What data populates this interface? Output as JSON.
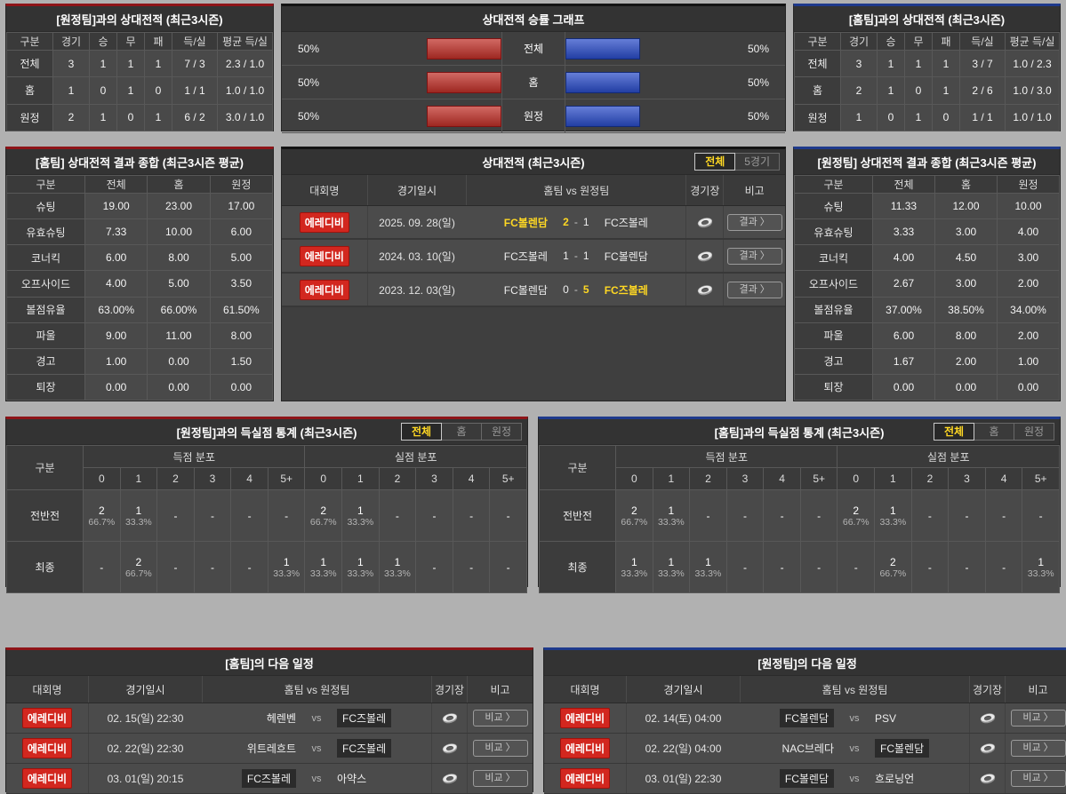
{
  "colors": {
    "accent_red": "#8e1418",
    "accent_blue": "#1e3a8c",
    "accent_dark": "#141414",
    "bar_red": "#c03028",
    "bar_blue": "#2a4cc8",
    "badge_red": "#d2271f",
    "highlight_yellow": "#ffd823"
  },
  "icons": {
    "stadium": "silver-ring"
  },
  "h2h_away": {
    "title": "[원정팀]과의 상대전적 (최근3시즌)",
    "headers": [
      "구분",
      "경기",
      "승",
      "무",
      "패",
      "득/실",
      "평균 득/실"
    ],
    "rows": [
      {
        "label": "전체",
        "cells": [
          "3",
          "1",
          "1",
          "1",
          "7 / 3",
          "2.3 / 1.0"
        ]
      },
      {
        "label": "홈",
        "cells": [
          "1",
          "0",
          "1",
          "0",
          "1 / 1",
          "1.0 / 1.0"
        ]
      },
      {
        "label": "원정",
        "cells": [
          "2",
          "1",
          "0",
          "1",
          "6 / 2",
          "3.0 / 1.0"
        ]
      }
    ]
  },
  "win_graph": {
    "title": "상대전적 승률 그래프",
    "rows": [
      {
        "label": "전체",
        "left_value": "50%",
        "right_value": "50%"
      },
      {
        "label": "홈",
        "left_value": "50%",
        "right_value": "50%"
      },
      {
        "label": "원정",
        "left_value": "50%",
        "right_value": "50%"
      }
    ]
  },
  "h2h_home": {
    "title": "[홈팀]과의 상대전적 (최근3시즌)",
    "headers": [
      "구분",
      "경기",
      "승",
      "무",
      "패",
      "득/실",
      "평균 득/실"
    ],
    "rows": [
      {
        "label": "전체",
        "cells": [
          "3",
          "1",
          "1",
          "1",
          "3 / 7",
          "1.0 / 2.3"
        ]
      },
      {
        "label": "홈",
        "cells": [
          "2",
          "1",
          "0",
          "1",
          "2 / 6",
          "1.0 / 3.0"
        ]
      },
      {
        "label": "원정",
        "cells": [
          "1",
          "0",
          "1",
          "0",
          "1 / 1",
          "1.0 / 1.0"
        ]
      }
    ]
  },
  "sum_home": {
    "title": "[홈팀] 상대전적 결과 종합 (최근3시즌 평균)",
    "headers": [
      "구분",
      "전체",
      "홈",
      "원정"
    ],
    "rows": [
      {
        "label": "슈팅",
        "cells": [
          "19.00",
          "23.00",
          "17.00"
        ]
      },
      {
        "label": "유효슈팅",
        "cells": [
          "7.33",
          "10.00",
          "6.00"
        ]
      },
      {
        "label": "코너킥",
        "cells": [
          "6.00",
          "8.00",
          "5.00"
        ]
      },
      {
        "label": "오프사이드",
        "cells": [
          "4.00",
          "5.00",
          "3.50"
        ]
      },
      {
        "label": "볼점유율",
        "cells": [
          "63.00%",
          "66.00%",
          "61.50%"
        ]
      },
      {
        "label": "파울",
        "cells": [
          "9.00",
          "11.00",
          "8.00"
        ]
      },
      {
        "label": "경고",
        "cells": [
          "1.00",
          "0.00",
          "1.50"
        ]
      },
      {
        "label": "퇴장",
        "cells": [
          "0.00",
          "0.00",
          "0.00"
        ]
      }
    ]
  },
  "sum_away": {
    "title": "[원정팀] 상대전적 결과 종합 (최근3시즌 평균)",
    "headers": [
      "구분",
      "전체",
      "홈",
      "원정"
    ],
    "rows": [
      {
        "label": "슈팅",
        "cells": [
          "11.33",
          "12.00",
          "10.00"
        ]
      },
      {
        "label": "유효슈팅",
        "cells": [
          "3.33",
          "3.00",
          "4.00"
        ]
      },
      {
        "label": "코너킥",
        "cells": [
          "4.00",
          "4.50",
          "3.00"
        ]
      },
      {
        "label": "오프사이드",
        "cells": [
          "2.67",
          "3.00",
          "2.00"
        ]
      },
      {
        "label": "볼점유율",
        "cells": [
          "37.00%",
          "38.50%",
          "34.00%"
        ]
      },
      {
        "label": "파울",
        "cells": [
          "6.00",
          "8.00",
          "2.00"
        ]
      },
      {
        "label": "경고",
        "cells": [
          "1.67",
          "2.00",
          "1.00"
        ]
      },
      {
        "label": "퇴장",
        "cells": [
          "0.00",
          "0.00",
          "0.00"
        ]
      }
    ]
  },
  "matches": {
    "title": "상대전적 (최근3시즌)",
    "tabs": [
      {
        "label": "전체",
        "active": true
      },
      {
        "label": "5경기",
        "active": false
      }
    ],
    "headers": {
      "league": "대회명",
      "date": "경기일시",
      "teams": "홈팀  vs  원정팀",
      "stadium": "경기장",
      "note": "비고"
    },
    "dash": "-",
    "rows": [
      {
        "league": "에레디비",
        "date": "2025. 09. 28(일)",
        "home": "FC볼렌담",
        "home_win": true,
        "score_home": "2",
        "score_away": "1",
        "away": "FC즈볼레",
        "away_win": false,
        "btn": "결과 〉"
      },
      {
        "league": "에레디비",
        "date": "2024. 03. 10(일)",
        "home": "FC즈볼레",
        "home_win": false,
        "score_home": "1",
        "score_away": "1",
        "away": "FC볼렌담",
        "away_win": false,
        "btn": "결과 〉"
      },
      {
        "league": "에레디비",
        "date": "2023. 12. 03(일)",
        "home": "FC볼렌담",
        "home_win": false,
        "score_home": "0",
        "score_away": "5",
        "away": "FC즈볼레",
        "away_win": true,
        "btn": "결과 〉"
      }
    ]
  },
  "gs_away": {
    "title": "[원정팀]과의 득실점 통계 (최근3시즌)",
    "tabs": [
      {
        "label": "전체",
        "active": true
      },
      {
        "label": "홈",
        "active": false
      },
      {
        "label": "원정",
        "active": false
      }
    ],
    "headers": {
      "cat": "구분",
      "scored": "득점 분포",
      "conceded": "실점 분포"
    },
    "cols": [
      "0",
      "1",
      "2",
      "3",
      "4",
      "5+"
    ],
    "rows": [
      {
        "label": "전반전",
        "cells": [
          {
            "c": "2",
            "p": "66.7%"
          },
          {
            "c": "1",
            "p": "33.3%"
          },
          {
            "c": "-",
            "p": ""
          },
          {
            "c": "-",
            "p": ""
          },
          {
            "c": "-",
            "p": ""
          },
          {
            "c": "-",
            "p": ""
          },
          {
            "c": "2",
            "p": "66.7%"
          },
          {
            "c": "1",
            "p": "33.3%"
          },
          {
            "c": "-",
            "p": ""
          },
          {
            "c": "-",
            "p": ""
          },
          {
            "c": "-",
            "p": ""
          },
          {
            "c": "-",
            "p": ""
          }
        ]
      },
      {
        "label": "최종",
        "cells": [
          {
            "c": "-",
            "p": ""
          },
          {
            "c": "2",
            "p": "66.7%"
          },
          {
            "c": "-",
            "p": ""
          },
          {
            "c": "-",
            "p": ""
          },
          {
            "c": "-",
            "p": ""
          },
          {
            "c": "1",
            "p": "33.3%"
          },
          {
            "c": "1",
            "p": "33.3%"
          },
          {
            "c": "1",
            "p": "33.3%"
          },
          {
            "c": "1",
            "p": "33.3%"
          },
          {
            "c": "-",
            "p": ""
          },
          {
            "c": "-",
            "p": ""
          },
          {
            "c": "-",
            "p": ""
          }
        ]
      }
    ]
  },
  "gs_home": {
    "title": "[홈팀]과의 득실점 통계 (최근3시즌)",
    "tabs": [
      {
        "label": "전체",
        "active": true
      },
      {
        "label": "홈",
        "active": false
      },
      {
        "label": "원정",
        "active": false
      }
    ],
    "headers": {
      "cat": "구분",
      "scored": "득점 분포",
      "conceded": "실점 분포"
    },
    "cols": [
      "0",
      "1",
      "2",
      "3",
      "4",
      "5+"
    ],
    "rows": [
      {
        "label": "전반전",
        "cells": [
          {
            "c": "2",
            "p": "66.7%"
          },
          {
            "c": "1",
            "p": "33.3%"
          },
          {
            "c": "-",
            "p": ""
          },
          {
            "c": "-",
            "p": ""
          },
          {
            "c": "-",
            "p": ""
          },
          {
            "c": "-",
            "p": ""
          },
          {
            "c": "2",
            "p": "66.7%"
          },
          {
            "c": "1",
            "p": "33.3%"
          },
          {
            "c": "-",
            "p": ""
          },
          {
            "c": "-",
            "p": ""
          },
          {
            "c": "-",
            "p": ""
          },
          {
            "c": "-",
            "p": ""
          }
        ]
      },
      {
        "label": "최종",
        "cells": [
          {
            "c": "1",
            "p": "33.3%"
          },
          {
            "c": "1",
            "p": "33.3%"
          },
          {
            "c": "1",
            "p": "33.3%"
          },
          {
            "c": "-",
            "p": ""
          },
          {
            "c": "-",
            "p": ""
          },
          {
            "c": "-",
            "p": ""
          },
          {
            "c": "-",
            "p": ""
          },
          {
            "c": "2",
            "p": "66.7%"
          },
          {
            "c": "-",
            "p": ""
          },
          {
            "c": "-",
            "p": ""
          },
          {
            "c": "-",
            "p": ""
          },
          {
            "c": "1",
            "p": "33.3%"
          }
        ]
      }
    ]
  },
  "sch_home": {
    "title": "[홈팀]의 다음 일정",
    "headers": {
      "league": "대회명",
      "date": "경기일시",
      "teams": "홈팀  vs  원정팀",
      "stadium": "경기장",
      "note": "비고"
    },
    "vs_label": "vs",
    "rows": [
      {
        "league": "에레디비",
        "date": "02. 15(일) 22:30",
        "home": "헤렌벤",
        "home_focus": false,
        "away": "FC즈볼레",
        "away_focus": true,
        "btn": "비교 〉"
      },
      {
        "league": "에레디비",
        "date": "02. 22(일) 22:30",
        "home": "위트레흐트",
        "home_focus": false,
        "away": "FC즈볼레",
        "away_focus": true,
        "btn": "비교 〉"
      },
      {
        "league": "에레디비",
        "date": "03. 01(일) 20:15",
        "home": "FC즈볼레",
        "home_focus": true,
        "away": "아약스",
        "away_focus": false,
        "btn": "비교 〉"
      }
    ]
  },
  "sch_away": {
    "title": "[원정팀]의 다음 일정",
    "headers": {
      "league": "대회명",
      "date": "경기일시",
      "teams": "홈팀  vs  원정팀",
      "stadium": "경기장",
      "note": "비고"
    },
    "vs_label": "vs",
    "rows": [
      {
        "league": "에레디비",
        "date": "02. 14(토) 04:00",
        "home": "FC볼렌담",
        "home_focus": true,
        "away": "PSV",
        "away_focus": false,
        "btn": "비교 〉"
      },
      {
        "league": "에레디비",
        "date": "02. 22(일) 04:00",
        "home": "NAC브레다",
        "home_focus": false,
        "away": "FC볼렌담",
        "away_focus": true,
        "btn": "비교 〉"
      },
      {
        "league": "에레디비",
        "date": "03. 01(일) 22:30",
        "home": "FC볼렌담",
        "home_focus": true,
        "away": "흐로닝언",
        "away_focus": false,
        "btn": "비교 〉"
      }
    ]
  }
}
